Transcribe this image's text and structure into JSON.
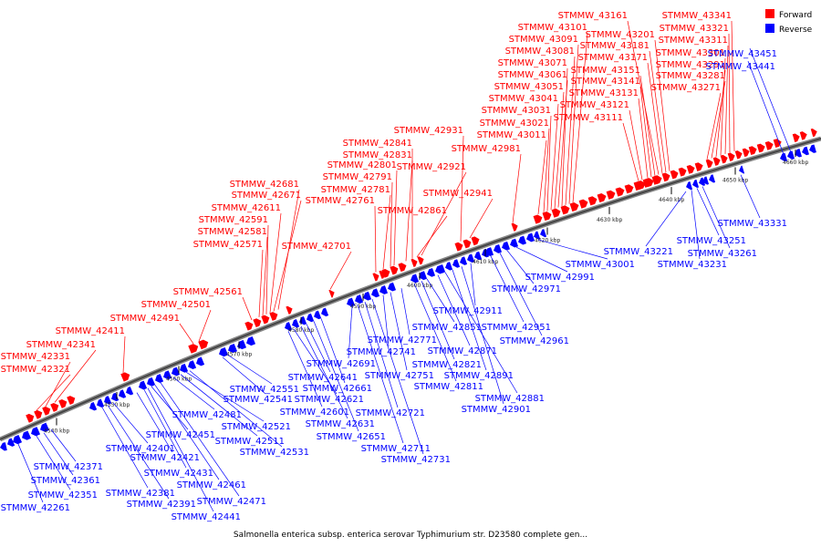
{
  "caption": "Salmonella enterica subsp. enterica serovar Typhimurium str. D23580 complete gen...",
  "legend": [
    {
      "label": "Forward",
      "color": "#ff0000"
    },
    {
      "label": "Reverse",
      "color": "#0000ff"
    }
  ],
  "colors": {
    "forward": "#ff0000",
    "reverse": "#0000ff",
    "backbone": "#555555"
  },
  "ticks": [
    "4540 kbp",
    "4550 kbp",
    "4560 kbp",
    "4570 kbp",
    "4580 kbp",
    "4590 kbp",
    "4600 kbp",
    "4610 kbp",
    "4620 kbp",
    "4630 kbp",
    "4640 kbp",
    "4650 kbp",
    "4660 kbp"
  ],
  "forward_labels": [
    "STMMW_42321",
    "STMMW_42331",
    "STMMW_42341",
    "STMMW_42411",
    "STMMW_42491",
    "STMMW_42501",
    "STMMW_42561",
    "STMMW_42571",
    "STMMW_42581",
    "STMMW_42591",
    "STMMW_42611",
    "STMMW_42671",
    "STMMW_42681",
    "STMMW_42701",
    "STMMW_42761",
    "STMMW_42781",
    "STMMW_42791",
    "STMMW_42801",
    "STMMW_42831",
    "STMMW_42841",
    "STMMW_42861",
    "STMMW_42921",
    "STMMW_42931",
    "STMMW_42941",
    "STMMW_42981",
    "STMMW_43011",
    "STMMW_43021",
    "STMMW_43031",
    "STMMW_43041",
    "STMMW_43051",
    "STMMW_43061",
    "STMMW_43071",
    "STMMW_43081",
    "STMMW_43091",
    "STMMW_43101",
    "STMMW_43111",
    "STMMW_43121",
    "STMMW_43131",
    "STMMW_43141",
    "STMMW_43151",
    "STMMW_43161",
    "STMMW_43171",
    "STMMW_43181",
    "STMMW_43201",
    "STMMW_43271",
    "STMMW_43281",
    "STMMW_43291",
    "STMMW_43301",
    "STMMW_43311",
    "STMMW_43321",
    "STMMW_43341"
  ],
  "reverse_labels": [
    "STMMW_42261",
    "STMMW_42351",
    "STMMW_42361",
    "STMMW_42371",
    "STMMW_42381",
    "STMMW_42391",
    "STMMW_42401",
    "STMMW_42421",
    "STMMW_42431",
    "STMMW_42441",
    "STMMW_42451",
    "STMMW_42461",
    "STMMW_42471",
    "STMMW_42481",
    "STMMW_42511",
    "STMMW_42521",
    "STMMW_42531",
    "STMMW_42541",
    "STMMW_42551",
    "STMMW_42601",
    "STMMW_42621",
    "STMMW_42631",
    "STMMW_42641",
    "STMMW_42651",
    "STMMW_42661",
    "STMMW_42691",
    "STMMW_42711",
    "STMMW_42721",
    "STMMW_42731",
    "STMMW_42741",
    "STMMW_42751",
    "STMMW_42771",
    "STMMW_42811",
    "STMMW_42821",
    "STMMW_42851",
    "STMMW_42871",
    "STMMW_42881",
    "STMMW_42891",
    "STMMW_42901",
    "STMMW_42911",
    "STMMW_42951",
    "STMMW_42961",
    "STMMW_42971",
    "STMMW_42991",
    "STMMW_43001",
    "STMMW_43221",
    "STMMW_43231",
    "STMMW_43251",
    "STMMW_43261",
    "STMMW_43331",
    "STMMW_43441",
    "STMMW_43451"
  ]
}
